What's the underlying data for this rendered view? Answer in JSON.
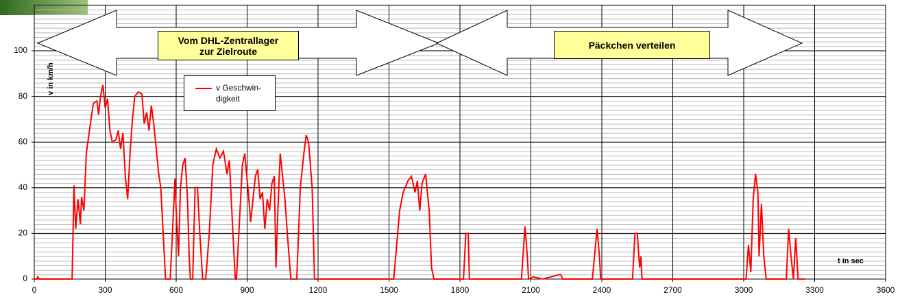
{
  "chart_data": {
    "type": "line",
    "y_label": "v in km/h",
    "x_label": "t in sec",
    "annotations": [
      "Vom DHL-Zentrallager\nzur Zielroute",
      "Päckchen verteilen"
    ],
    "xlim": [
      0,
      3600
    ],
    "xticks": [
      0,
      300,
      600,
      900,
      1200,
      1500,
      1800,
      2100,
      2400,
      2700,
      3000,
      3300,
      3600
    ],
    "ylim": [
      0,
      120
    ],
    "yticks": [
      0,
      20,
      40,
      60,
      80,
      100
    ],
    "grid": true,
    "legend": "upper left",
    "series": [
      {
        "name": "v Geschwin-\ndigkeit",
        "color": "#ff0000",
        "x": [
          0,
          10,
          15,
          20,
          160,
          168,
          175,
          185,
          195,
          200,
          210,
          220,
          240,
          250,
          265,
          272,
          280,
          290,
          300,
          310,
          320,
          330,
          345,
          355,
          365,
          375,
          385,
          395,
          405,
          415,
          425,
          440,
          455,
          465,
          475,
          485,
          495,
          505,
          515,
          525,
          535,
          545,
          555,
          575,
          585,
          595,
          600,
          610,
          618,
          628,
          638,
          648,
          655,
          660,
          670,
          680,
          690,
          700,
          712,
          725,
          740,
          755,
          770,
          785,
          800,
          815,
          825,
          840,
          850,
          855,
          870,
          880,
          890,
          905,
          915,
          935,
          945,
          955,
          965,
          975,
          985,
          995,
          1005,
          1015,
          1022,
          1030,
          1040,
          1050,
          1060,
          1070,
          1085,
          1110,
          1125,
          1140,
          1150,
          1160,
          1175,
          1185,
          1520,
          1545,
          1560,
          1580,
          1595,
          1610,
          1620,
          1630,
          1640,
          1655,
          1670,
          1680,
          1690,
          1815,
          1825,
          1835,
          1840,
          2060,
          2075,
          2085,
          2090,
          2110,
          2150,
          2225,
          2235,
          2360,
          2380,
          2390,
          2395,
          2530,
          2540,
          2550,
          2560,
          2565,
          2570,
          3010,
          3020,
          3030,
          3040,
          3050,
          3060,
          3065,
          3075,
          3085,
          3095,
          3180,
          3190,
          3200,
          3210,
          3220,
          3230,
          3260
        ],
        "values": [
          0,
          0,
          1,
          0,
          0,
          41,
          22,
          35,
          24,
          36,
          30,
          55,
          70,
          77,
          78,
          72,
          80,
          85,
          75,
          79,
          65,
          60,
          61,
          65,
          57,
          64,
          45,
          35,
          55,
          70,
          80,
          82,
          81,
          68,
          73,
          65,
          76,
          68,
          58,
          47,
          40,
          20,
          0,
          0,
          22,
          44,
          30,
          10,
          40,
          50,
          53,
          35,
          10,
          0,
          0,
          40,
          40,
          20,
          0,
          0,
          20,
          50,
          57,
          53,
          56,
          46,
          52,
          20,
          0,
          0,
          30,
          50,
          55,
          38,
          25,
          45,
          48,
          35,
          38,
          22,
          35,
          30,
          42,
          45,
          5,
          30,
          55,
          45,
          35,
          20,
          0,
          0,
          40,
          55,
          63,
          60,
          40,
          0,
          0,
          30,
          38,
          43,
          45,
          38,
          43,
          30,
          42,
          46,
          30,
          5,
          0,
          0,
          20,
          20,
          0,
          0,
          23,
          10,
          0,
          1,
          0,
          2,
          0,
          0,
          22,
          10,
          0,
          0,
          20,
          20,
          5,
          10,
          0,
          0,
          15,
          3,
          35,
          46,
          38,
          10,
          33,
          10,
          0,
          0,
          22,
          10,
          0,
          18,
          0,
          0
        ]
      }
    ]
  }
}
